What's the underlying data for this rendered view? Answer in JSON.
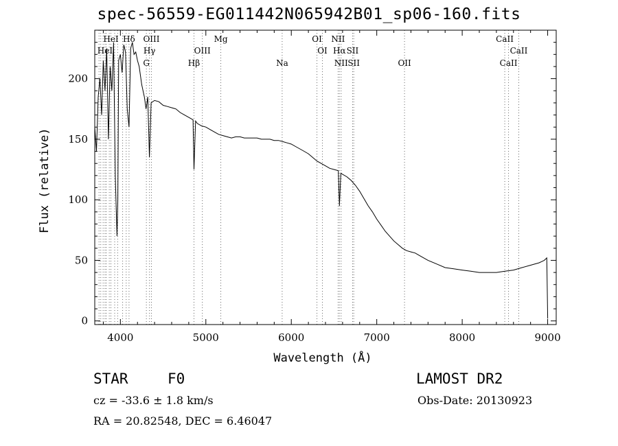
{
  "title": "spec-56559-EG011442N065942B01_sp06-160.fits",
  "info": {
    "object_class": "STAR",
    "subclass": "F0",
    "survey": "LAMOST DR2",
    "cz": "cz = -33.6 ± 1.8 km/s",
    "obs_date": "Obs-Date: 20130923",
    "radec": "RA =  20.82548, DEC =   6.46047"
  },
  "chart_data": {
    "type": "line",
    "title": "spec-56559-EG011442N065942B01_sp06-160.fits",
    "xlabel": "Wavelength (Å)",
    "ylabel": "Flux (relative)",
    "xlim": [
      3700,
      9100
    ],
    "ylim": [
      -3,
      240
    ],
    "x_ticks": [
      4000,
      5000,
      6000,
      7000,
      8000,
      9000
    ],
    "y_ticks": [
      0,
      50,
      100,
      150,
      200
    ],
    "grid": false,
    "series": [
      {
        "x": [
          3700,
          3720,
          3740,
          3760,
          3780,
          3800,
          3820,
          3840,
          3860,
          3880,
          3900,
          3920,
          3940,
          3960,
          3970,
          3980,
          4000,
          4020,
          4040,
          4060,
          4080,
          4101,
          4120,
          4140,
          4160,
          4180,
          4200,
          4220,
          4250,
          4280,
          4300,
          4320,
          4340,
          4360,
          4400,
          4450,
          4500,
          4550,
          4600,
          4650,
          4700,
          4750,
          4800,
          4850,
          4861,
          4880,
          4900,
          4950,
          5000,
          5050,
          5100,
          5150,
          5200,
          5250,
          5300,
          5350,
          5400,
          5450,
          5500,
          5550,
          5600,
          5650,
          5700,
          5750,
          5800,
          5850,
          5900,
          5950,
          6000,
          6050,
          6100,
          6150,
          6200,
          6250,
          6300,
          6350,
          6400,
          6450,
          6500,
          6550,
          6563,
          6580,
          6600,
          6650,
          6700,
          6750,
          6800,
          6850,
          6900,
          6950,
          7000,
          7050,
          7100,
          7150,
          7200,
          7250,
          7300,
          7350,
          7400,
          7450,
          7500,
          7600,
          7700,
          7800,
          7900,
          8000,
          8100,
          8200,
          8300,
          8400,
          8500,
          8600,
          8700,
          8800,
          8900,
          8960,
          8990,
          9000
        ],
        "y": [
          160,
          140,
          185,
          200,
          170,
          215,
          190,
          225,
          150,
          210,
          190,
          230,
          120,
          70,
          100,
          215,
          220,
          205,
          228,
          222,
          175,
          160,
          225,
          230,
          220,
          222,
          215,
          210,
          195,
          185,
          175,
          185,
          135,
          180,
          182,
          181,
          178,
          177,
          176,
          175,
          172,
          170,
          168,
          166,
          125,
          165,
          163,
          161,
          160,
          158,
          156,
          154,
          153,
          152,
          151,
          152,
          152,
          151,
          151,
          151,
          151,
          150,
          150,
          150,
          149,
          149,
          148,
          147,
          146,
          144,
          142,
          140,
          138,
          135,
          132,
          130,
          128,
          126,
          125,
          124,
          95,
          122,
          121,
          119,
          116,
          112,
          107,
          101,
          95,
          90,
          84,
          79,
          74,
          70,
          66,
          63,
          60,
          58,
          57,
          56,
          54,
          50,
          47,
          44,
          43,
          42,
          41,
          40,
          40,
          40,
          41,
          42,
          44,
          46,
          48,
          50,
          52,
          2
        ]
      }
    ],
    "lines": [
      {
        "name": "HeI",
        "wave": 3889,
        "row": 0
      },
      {
        "name": "Hδ",
        "wave": 4101,
        "row": 0
      },
      {
        "name": "OIII",
        "wave": 4363,
        "row": 0
      },
      {
        "name": "Mg",
        "wave": 5175,
        "row": 0
      },
      {
        "name": "OI",
        "wave": 6300,
        "row": 0
      },
      {
        "name": "NII",
        "wave": 6548,
        "row": 0
      },
      {
        "name": "CaII",
        "wave": 8498,
        "row": 0
      },
      {
        "name": "HeI",
        "wave": 3820,
        "row": 1
      },
      {
        "name": "Hγ",
        "wave": 4340,
        "row": 1
      },
      {
        "name": "OIII",
        "wave": 4959,
        "row": 1
      },
      {
        "name": "OI",
        "wave": 6364,
        "row": 1
      },
      {
        "name": "Hα",
        "wave": 6563,
        "row": 1
      },
      {
        "name": "SII",
        "wave": 6717,
        "row": 1
      },
      {
        "name": "CaII",
        "wave": 8662,
        "row": 1
      },
      {
        "name": "G",
        "wave": 4304,
        "row": 2
      },
      {
        "name": "Hβ",
        "wave": 4861,
        "row": 2
      },
      {
        "name": "Na",
        "wave": 5893,
        "row": 2
      },
      {
        "name": "NII",
        "wave": 6583,
        "row": 2
      },
      {
        "name": "SII",
        "wave": 6731,
        "row": 2
      },
      {
        "name": "OII",
        "wave": 7325,
        "row": 2
      },
      {
        "name": "CaII",
        "wave": 8542,
        "row": 2
      }
    ],
    "extra_line_waves": [
      3750,
      3770,
      3798,
      3835,
      3870,
      3933,
      3968,
      4026,
      4068
    ]
  }
}
